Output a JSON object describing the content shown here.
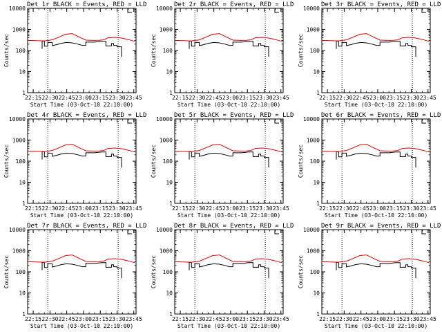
{
  "figure": {
    "panel_titles": [
      "Det 1r BLACK = Events, RED = LLD",
      "Det 2r BLACK = Events, RED = LLD",
      "Det 3r BLACK = Events, RED = LLD",
      "Det 4r BLACK = Events, RED = LLD",
      "Det 5r BLACK = Events, RED = LLD",
      "Det 6r BLACK = Events, RED = LLD",
      "Det 7r BLACK = Events, RED = LLD",
      "Det 8r BLACK = Events, RED = LLD",
      "Det 9r BLACK = Events, RED = LLD"
    ]
  },
  "chart_data": {
    "type": "line",
    "panels": 9,
    "layout": "3x3 grid",
    "ylabel": "Counts/sec",
    "xlabel": "Start Time (03-Oct-10 22:10:00)",
    "yscale": "log",
    "ylim": [
      1,
      10000
    ],
    "ytick_labels": [
      "1",
      "10",
      "100",
      "1000",
      "10000"
    ],
    "xlim": [
      0,
      97
    ],
    "xtick_minutes": [
      5,
      20,
      35,
      50,
      65,
      80,
      95
    ],
    "xtick_labels": [
      "22:15",
      "22:30",
      "22:45",
      "23:00",
      "23:15",
      "23:30",
      "23:45"
    ],
    "dotted_vlines_minutes": [
      18,
      81
    ],
    "series": [
      {
        "name": "Events",
        "color": "#000000",
        "x": [
          13,
          13,
          15,
          15,
          18,
          18,
          22,
          22,
          26,
          30,
          35,
          40,
          45,
          49,
          52,
          52,
          60,
          66,
          70,
          70,
          75,
          75,
          77,
          77,
          80,
          80,
          84,
          84
        ],
        "y": [
          120,
          280,
          280,
          160,
          160,
          240,
          240,
          170,
          190,
          220,
          240,
          230,
          200,
          175,
          175,
          250,
          250,
          270,
          270,
          165,
          165,
          215,
          215,
          175,
          175,
          150,
          150,
          50
        ]
      },
      {
        "name": "LLD",
        "color": "#dd0000",
        "x": [
          0,
          8,
          15,
          22,
          28,
          34,
          40,
          46,
          52,
          56,
          60,
          64,
          68,
          72,
          78,
          84,
          90,
          96
        ],
        "y": [
          300,
          295,
          285,
          320,
          430,
          590,
          630,
          440,
          310,
          305,
          300,
          305,
          320,
          400,
          420,
          390,
          330,
          270
        ]
      }
    ]
  }
}
